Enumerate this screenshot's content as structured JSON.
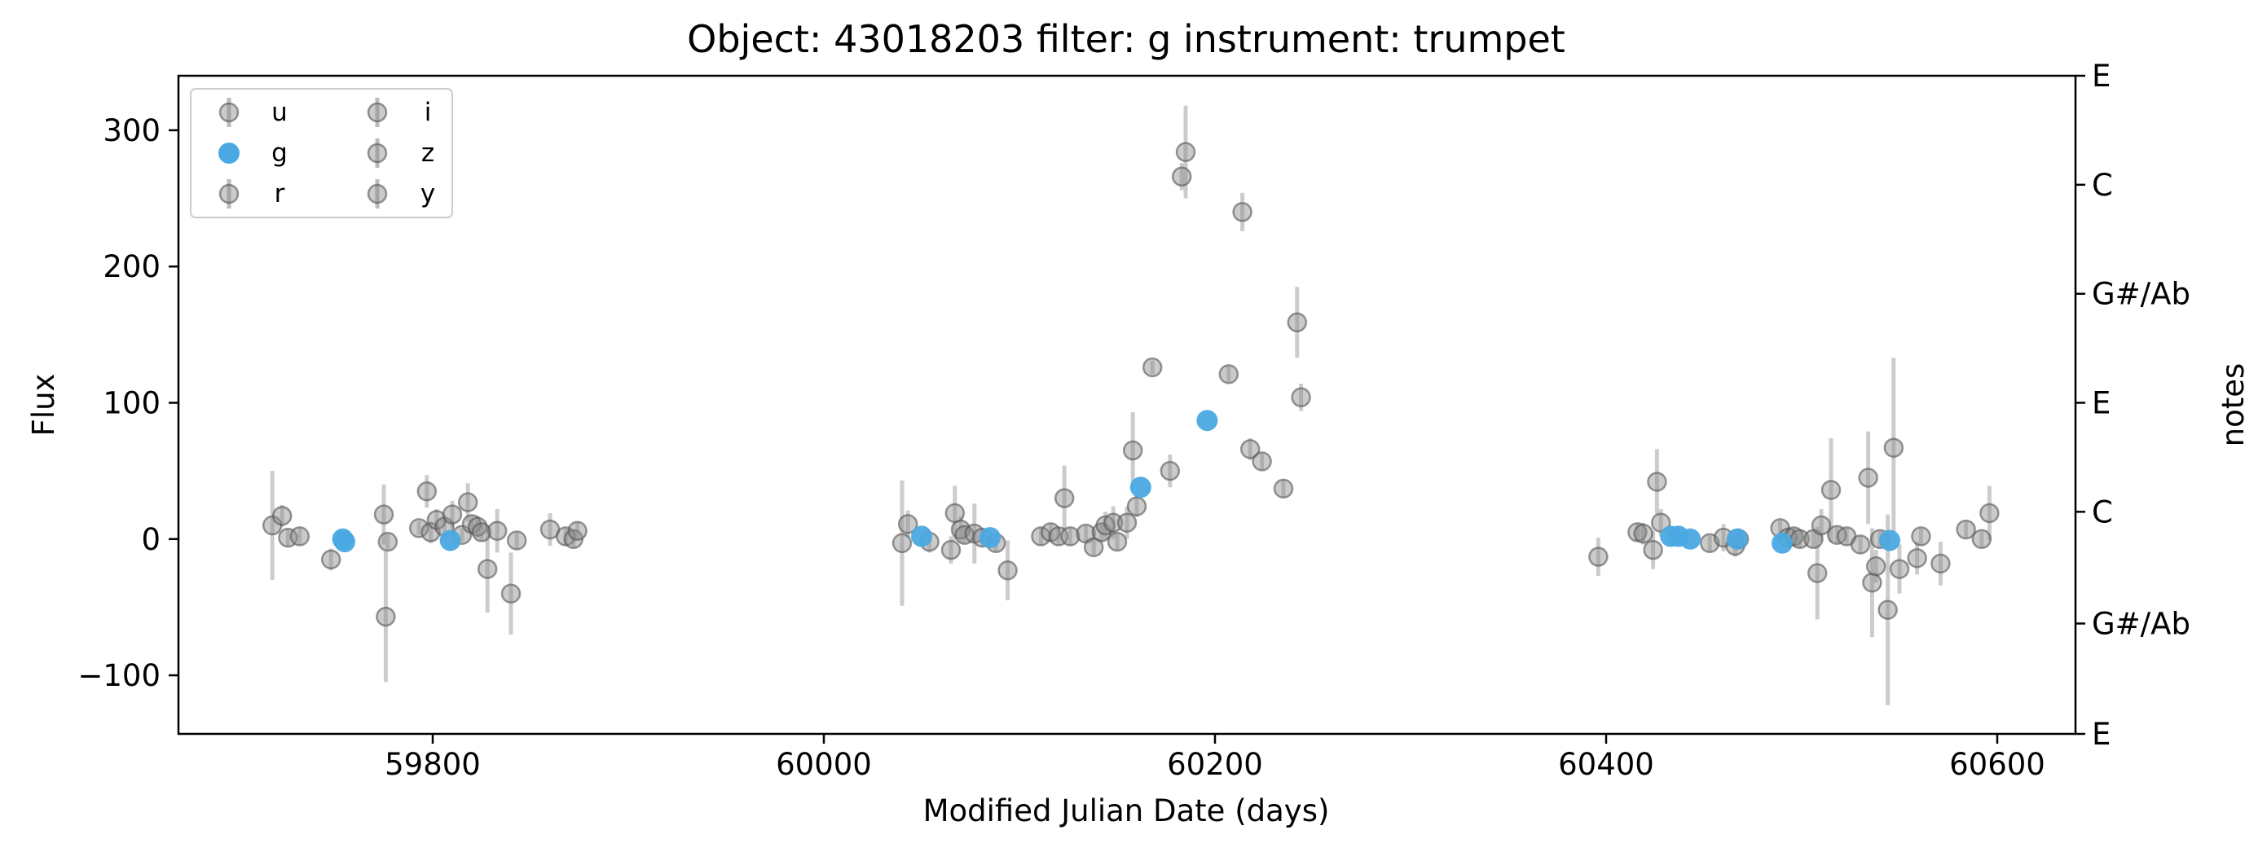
{
  "chart_data": {
    "type": "scatter",
    "title": "Object: 43018203 filter: g instrument: trumpet",
    "xlabel": "Modified Julian Date (days)",
    "ylabel": "Flux",
    "right_ylabel": "notes",
    "xlim": [
      59670,
      60640
    ],
    "ylim": [
      -143,
      340
    ],
    "x_ticks": [
      {
        "value": 59800,
        "label": "59800"
      },
      {
        "value": 60000,
        "label": "60000"
      },
      {
        "value": 60200,
        "label": "60200"
      },
      {
        "value": 60400,
        "label": "60400"
      },
      {
        "value": 60600,
        "label": "60600"
      }
    ],
    "y_ticks": [
      {
        "value": -100,
        "label": "−100"
      },
      {
        "value": 0,
        "label": "0"
      },
      {
        "value": 100,
        "label": "100"
      },
      {
        "value": 200,
        "label": "200"
      },
      {
        "value": 300,
        "label": "300"
      }
    ],
    "right_ticks": [
      {
        "value": 340,
        "label": "E"
      },
      {
        "value": 260,
        "label": "C"
      },
      {
        "value": 180,
        "label": "G#/Ab"
      },
      {
        "value": 100,
        "label": "E"
      },
      {
        "value": 20,
        "label": "C"
      },
      {
        "value": -62,
        "label": "G#/Ab"
      },
      {
        "value": -143,
        "label": "E"
      }
    ],
    "legend": {
      "placement": "top-left",
      "columns": 2,
      "entries": [
        "u",
        "g",
        "r",
        "i",
        "z",
        "y"
      ]
    },
    "grid": false,
    "colors": {
      "highlight": "#4aa9e2",
      "background_points": "#8c8c8c",
      "error_bar": "#bbbbbb"
    },
    "series": [
      {
        "name": "g",
        "highlight": true,
        "points": [
          [
            59754,
            0,
            4
          ],
          [
            59755,
            -2,
            4
          ],
          [
            59809,
            -1,
            4
          ],
          [
            60050,
            2,
            4
          ],
          [
            60085,
            1,
            4
          ],
          [
            60162,
            38,
            4
          ],
          [
            60196,
            87,
            4
          ],
          [
            60433,
            2,
            4
          ],
          [
            60437,
            2,
            4
          ],
          [
            60443,
            0,
            4
          ],
          [
            60467,
            0,
            4
          ],
          [
            60490,
            -3,
            4
          ],
          [
            60545,
            -1,
            4
          ]
        ]
      },
      {
        "name": "other",
        "highlight": false,
        "points": [
          [
            59718,
            10,
            40
          ],
          [
            59723,
            17,
            8
          ],
          [
            59726,
            1,
            6
          ],
          [
            59732,
            2,
            6
          ],
          [
            59748,
            -15,
            8
          ],
          [
            59775,
            18,
            22
          ],
          [
            59776,
            -57,
            48
          ],
          [
            59777,
            -2,
            6
          ],
          [
            59793,
            8,
            5
          ],
          [
            59797,
            35,
            12
          ],
          [
            59799,
            5,
            8
          ],
          [
            59802,
            14,
            8
          ],
          [
            59806,
            9,
            5
          ],
          [
            59810,
            18,
            10
          ],
          [
            59815,
            3,
            5
          ],
          [
            59818,
            27,
            14
          ],
          [
            59820,
            11,
            6
          ],
          [
            59823,
            9,
            8
          ],
          [
            59825,
            5,
            6
          ],
          [
            59828,
            -22,
            32
          ],
          [
            59833,
            6,
            16
          ],
          [
            59840,
            -40,
            30
          ],
          [
            59843,
            -1,
            6
          ],
          [
            59860,
            7,
            12
          ],
          [
            59868,
            2,
            6
          ],
          [
            59872,
            0,
            6
          ],
          [
            59874,
            6,
            6
          ],
          [
            60040,
            -3,
            46
          ],
          [
            60043,
            11,
            10
          ],
          [
            60054,
            -2,
            8
          ],
          [
            60065,
            -8,
            10
          ],
          [
            60067,
            19,
            20
          ],
          [
            60070,
            7,
            10
          ],
          [
            60072,
            3,
            6
          ],
          [
            60077,
            4,
            22
          ],
          [
            60081,
            1,
            6
          ],
          [
            60088,
            -3,
            6
          ],
          [
            60094,
            -23,
            22
          ],
          [
            60111,
            2,
            6
          ],
          [
            60116,
            5,
            6
          ],
          [
            60120,
            2,
            6
          ],
          [
            60123,
            30,
            24
          ],
          [
            60126,
            2,
            6
          ],
          [
            60134,
            4,
            6
          ],
          [
            60138,
            -6,
            6
          ],
          [
            60142,
            5,
            6
          ],
          [
            60144,
            10,
            10
          ],
          [
            60148,
            12,
            12
          ],
          [
            60150,
            -2,
            6
          ],
          [
            60155,
            12,
            12
          ],
          [
            60158,
            65,
            28
          ],
          [
            60160,
            24,
            8
          ],
          [
            60168,
            126,
            5
          ],
          [
            60177,
            50,
            12
          ],
          [
            60183,
            266,
            10
          ],
          [
            60185,
            284,
            34
          ],
          [
            60207,
            121,
            6
          ],
          [
            60214,
            240,
            14
          ],
          [
            60218,
            66,
            8
          ],
          [
            60224,
            57,
            6
          ],
          [
            60235,
            37,
            6
          ],
          [
            60242,
            159,
            26
          ],
          [
            60244,
            104,
            10
          ],
          [
            60396,
            -13,
            14
          ],
          [
            60416,
            5,
            6
          ],
          [
            60419,
            4,
            8
          ],
          [
            60424,
            -8,
            14
          ],
          [
            60426,
            42,
            24
          ],
          [
            60428,
            12,
            10
          ],
          [
            60453,
            -3,
            6
          ],
          [
            60460,
            1,
            10
          ],
          [
            60466,
            -5,
            8
          ],
          [
            60468,
            0,
            8
          ],
          [
            60489,
            8,
            6
          ],
          [
            60493,
            1,
            8
          ],
          [
            60496,
            2,
            6
          ],
          [
            60499,
            0,
            6
          ],
          [
            60506,
            0,
            6
          ],
          [
            60508,
            -25,
            34
          ],
          [
            60510,
            10,
            12
          ],
          [
            60515,
            36,
            38
          ],
          [
            60518,
            3,
            6
          ],
          [
            60523,
            2,
            6
          ],
          [
            60530,
            -4,
            6
          ],
          [
            60534,
            45,
            34
          ],
          [
            60536,
            -32,
            40
          ],
          [
            60538,
            -20,
            12
          ],
          [
            60540,
            0,
            6
          ],
          [
            60544,
            -52,
            70
          ],
          [
            60547,
            67,
            66
          ],
          [
            60550,
            -22,
            18
          ],
          [
            60559,
            -14,
            12
          ],
          [
            60561,
            2,
            6
          ],
          [
            60571,
            -18,
            16
          ],
          [
            60584,
            7,
            6
          ],
          [
            60592,
            0,
            6
          ],
          [
            60596,
            19,
            20
          ]
        ]
      }
    ]
  }
}
